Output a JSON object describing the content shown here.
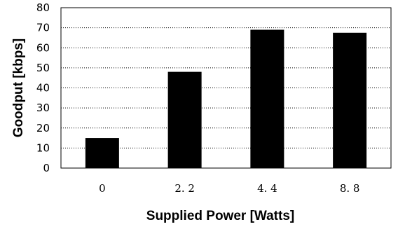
{
  "chart_data": {
    "type": "bar",
    "categories": [
      "0",
      "2. 2",
      "4. 4",
      "8. 8"
    ],
    "values": [
      15,
      48,
      69,
      67.5
    ],
    "title": "",
    "xlabel": "Supplied Power [Watts]",
    "ylabel": "Goodput [kbps]",
    "ylim": [
      0,
      80
    ],
    "yticks": [
      "0",
      "10",
      "20",
      "30",
      "40",
      "50",
      "60",
      "70",
      "80"
    ],
    "grid": true,
    "colors": {
      "bar": "#000000",
      "grid": "#000000",
      "axis": "#000000"
    }
  }
}
